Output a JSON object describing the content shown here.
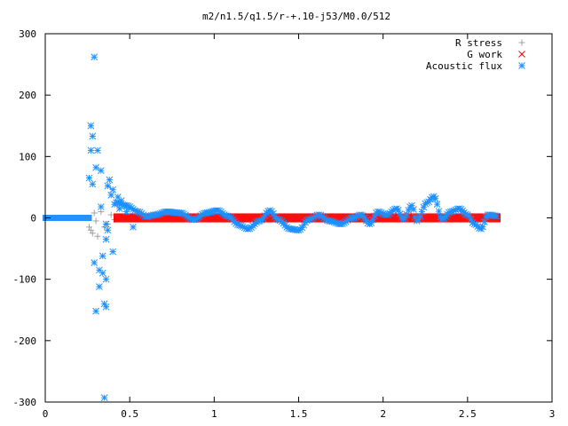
{
  "chart_data": {
    "type": "scatter",
    "title": "m2/n1.5/q1.5/r-+.10-j53/M0.0/512",
    "xlabel": "",
    "ylabel": "",
    "xlim": [
      0,
      3
    ],
    "ylim": [
      -300,
      300
    ],
    "grid": false,
    "legend_position": "top-right",
    "x_ticks": [
      {
        "value": 0,
        "label": "0"
      },
      {
        "value": 0.5,
        "label": "0.5"
      },
      {
        "value": 1,
        "label": "1"
      },
      {
        "value": 1.5,
        "label": "1.5"
      },
      {
        "value": 2,
        "label": "2"
      },
      {
        "value": 2.5,
        "label": "2.5"
      },
      {
        "value": 3,
        "label": "3"
      }
    ],
    "y_ticks": [
      {
        "value": -300,
        "label": "-300"
      },
      {
        "value": -200,
        "label": "-200"
      },
      {
        "value": -100,
        "label": "-100"
      },
      {
        "value": 0,
        "label": "0"
      },
      {
        "value": 100,
        "label": "100"
      },
      {
        "value": 200,
        "label": "200"
      },
      {
        "value": 300,
        "label": "300"
      }
    ],
    "series": [
      {
        "name": "R stress",
        "marker": "plus",
        "color": "#a0a0a0",
        "points": [
          [
            0.26,
            -15
          ],
          [
            0.27,
            -20
          ],
          [
            0.28,
            -25
          ],
          [
            0.29,
            8
          ],
          [
            0.3,
            -5
          ],
          [
            0.31,
            -30
          ],
          [
            0.33,
            10
          ],
          [
            0.35,
            -15
          ],
          [
            0.37,
            -10
          ],
          [
            0.39,
            5
          ],
          [
            0.41,
            -3
          ]
        ],
        "band_x_start": 0.0,
        "band_x_end": 0.26
      },
      {
        "name": "G work",
        "marker": "cross",
        "color": "#ff0000",
        "band_x_start": 0.42,
        "band_x_end": 2.68,
        "band_y_min": -3,
        "band_y_max": 3
      },
      {
        "name": "Acoustic flux",
        "marker": "star",
        "color": "#1e90ff",
        "points": [
          [
            0.29,
            262
          ],
          [
            0.27,
            150
          ],
          [
            0.28,
            133
          ],
          [
            0.27,
            110
          ],
          [
            0.31,
            110
          ],
          [
            0.3,
            82
          ],
          [
            0.33,
            77
          ],
          [
            0.26,
            65
          ],
          [
            0.28,
            55
          ],
          [
            0.38,
            62
          ],
          [
            0.37,
            52
          ],
          [
            0.4,
            46
          ],
          [
            0.39,
            37
          ],
          [
            0.43,
            34
          ],
          [
            0.45,
            28
          ],
          [
            0.33,
            18
          ],
          [
            0.41,
            22
          ],
          [
            0.36,
            -10
          ],
          [
            0.37,
            -20
          ],
          [
            0.36,
            -35
          ],
          [
            0.4,
            -55
          ],
          [
            0.34,
            -62
          ],
          [
            0.29,
            -73
          ],
          [
            0.32,
            -85
          ],
          [
            0.34,
            -90
          ],
          [
            0.36,
            -100
          ],
          [
            0.32,
            -112
          ],
          [
            0.35,
            -140
          ],
          [
            0.36,
            -145
          ],
          [
            0.3,
            -152
          ],
          [
            0.35,
            -293
          ],
          [
            0.52,
            -15
          ],
          [
            0.5,
            18
          ],
          [
            0.48,
            10
          ],
          [
            0.44,
            15
          ]
        ],
        "band_x_start": 0.0,
        "band_x_end": 0.26,
        "curve_x_start": 0.42,
        "curve_x_end": 2.68,
        "curve": [
          [
            0.42,
            25
          ],
          [
            0.48,
            20
          ],
          [
            0.55,
            10
          ],
          [
            0.6,
            2
          ],
          [
            0.65,
            5
          ],
          [
            0.72,
            10
          ],
          [
            0.8,
            8
          ],
          [
            0.88,
            -3
          ],
          [
            0.95,
            8
          ],
          [
            1.02,
            12
          ],
          [
            1.08,
            3
          ],
          [
            1.15,
            -12
          ],
          [
            1.2,
            -18
          ],
          [
            1.27,
            -5
          ],
          [
            1.33,
            12
          ],
          [
            1.38,
            -3
          ],
          [
            1.45,
            -18
          ],
          [
            1.5,
            -20
          ],
          [
            1.56,
            -3
          ],
          [
            1.62,
            5
          ],
          [
            1.68,
            -5
          ],
          [
            1.75,
            -10
          ],
          [
            1.82,
            0
          ],
          [
            1.87,
            5
          ],
          [
            1.92,
            -10
          ],
          [
            1.97,
            10
          ],
          [
            2.02,
            5
          ],
          [
            2.08,
            15
          ],
          [
            2.12,
            -2
          ],
          [
            2.17,
            20
          ],
          [
            2.2,
            -5
          ],
          [
            2.26,
            25
          ],
          [
            2.3,
            35
          ],
          [
            2.35,
            -2
          ],
          [
            2.4,
            10
          ],
          [
            2.45,
            15
          ],
          [
            2.5,
            5
          ],
          [
            2.54,
            -10
          ],
          [
            2.58,
            -18
          ],
          [
            2.62,
            5
          ],
          [
            2.68,
            3
          ]
        ]
      }
    ]
  }
}
